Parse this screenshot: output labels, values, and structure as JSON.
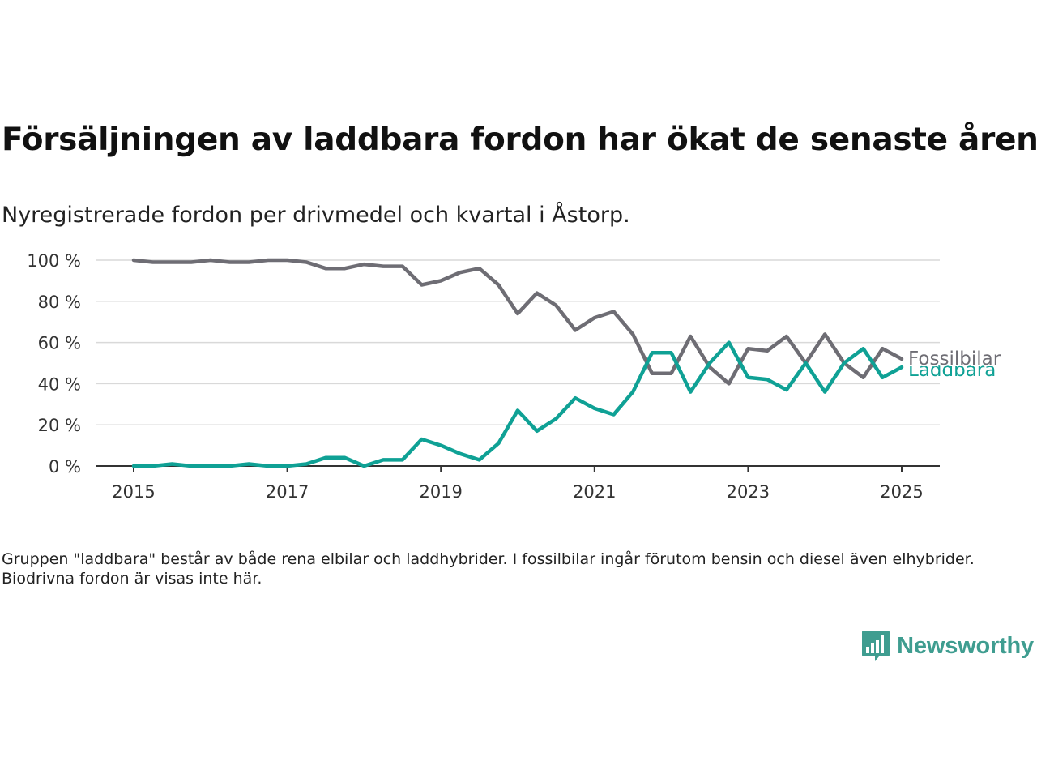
{
  "title": "Försäljningen av laddbara fordon har ökat de senaste åren",
  "subtitle": "Nyregistrerade fordon per drivmedel och kvartal i Åstorp.",
  "note": "Gruppen \"laddbara\" består av både rena elbilar och laddhybrider. I fossilbilar ingår förutom bensin och diesel även elhybrider. Biodrivna fordon är visas inte här.",
  "brand": {
    "name": "Newsworthy",
    "icon": "bar-chart-speech-bubble-icon",
    "color": "#3f9d90"
  },
  "chart_data": {
    "type": "line",
    "title": "Försäljningen av laddbara fordon har ökat de senaste åren",
    "subtitle": "Nyregistrerade fordon per drivmedel och kvartal i Åstorp.",
    "xlabel": "",
    "ylabel": "",
    "x_start": "2015 Q1",
    "x_ticks": [
      "2015",
      "2017",
      "2019",
      "2021",
      "2023",
      "2025"
    ],
    "y_ticks": [
      "0 %",
      "20 %",
      "40 %",
      "60 %",
      "80 %",
      "100 %"
    ],
    "ylim": [
      0,
      100
    ],
    "xlim": [
      2014.5,
      2025.5
    ],
    "grid": "horizontal",
    "legend": "direct labels at line ends",
    "series": [
      {
        "name": "Fossilbilar",
        "color": "#6e6d74",
        "x": [
          2015.0,
          2015.25,
          2015.5,
          2015.75,
          2016.0,
          2016.25,
          2016.5,
          2016.75,
          2017.0,
          2017.25,
          2017.5,
          2017.75,
          2018.0,
          2018.25,
          2018.5,
          2018.75,
          2019.0,
          2019.25,
          2019.5,
          2019.75,
          2020.0,
          2020.25,
          2020.5,
          2020.75,
          2021.0,
          2021.25,
          2021.5,
          2021.75,
          2022.0,
          2022.25,
          2022.5,
          2022.75,
          2023.0,
          2023.25,
          2023.5,
          2023.75,
          2024.0,
          2024.25,
          2024.5,
          2024.75,
          2025.0
        ],
        "values": [
          100,
          99,
          99,
          99,
          100,
          99,
          99,
          100,
          100,
          99,
          96,
          96,
          98,
          97,
          97,
          88,
          90,
          94,
          96,
          88,
          74,
          84,
          78,
          66,
          72,
          75,
          64,
          45,
          45,
          63,
          48,
          40,
          57,
          56,
          63,
          50,
          64,
          50,
          43,
          57,
          52
        ]
      },
      {
        "name": "Laddbara",
        "color": "#0fa195",
        "x": [
          2015.0,
          2015.25,
          2015.5,
          2015.75,
          2016.0,
          2016.25,
          2016.5,
          2016.75,
          2017.0,
          2017.25,
          2017.5,
          2017.75,
          2018.0,
          2018.25,
          2018.5,
          2018.75,
          2019.0,
          2019.25,
          2019.5,
          2019.75,
          2020.0,
          2020.25,
          2020.5,
          2020.75,
          2021.0,
          2021.25,
          2021.5,
          2021.75,
          2022.0,
          2022.25,
          2022.5,
          2022.75,
          2023.0,
          2023.25,
          2023.5,
          2023.75,
          2024.0,
          2024.25,
          2024.5,
          2024.75,
          2025.0
        ],
        "values": [
          0,
          0,
          1,
          0,
          0,
          0,
          1,
          0,
          0,
          1,
          4,
          4,
          0,
          3,
          3,
          13,
          10,
          6,
          3,
          11,
          27,
          17,
          23,
          33,
          28,
          25,
          36,
          55,
          55,
          36,
          50,
          60,
          43,
          42,
          37,
          50,
          36,
          50,
          57,
          43,
          48
        ]
      }
    ]
  }
}
